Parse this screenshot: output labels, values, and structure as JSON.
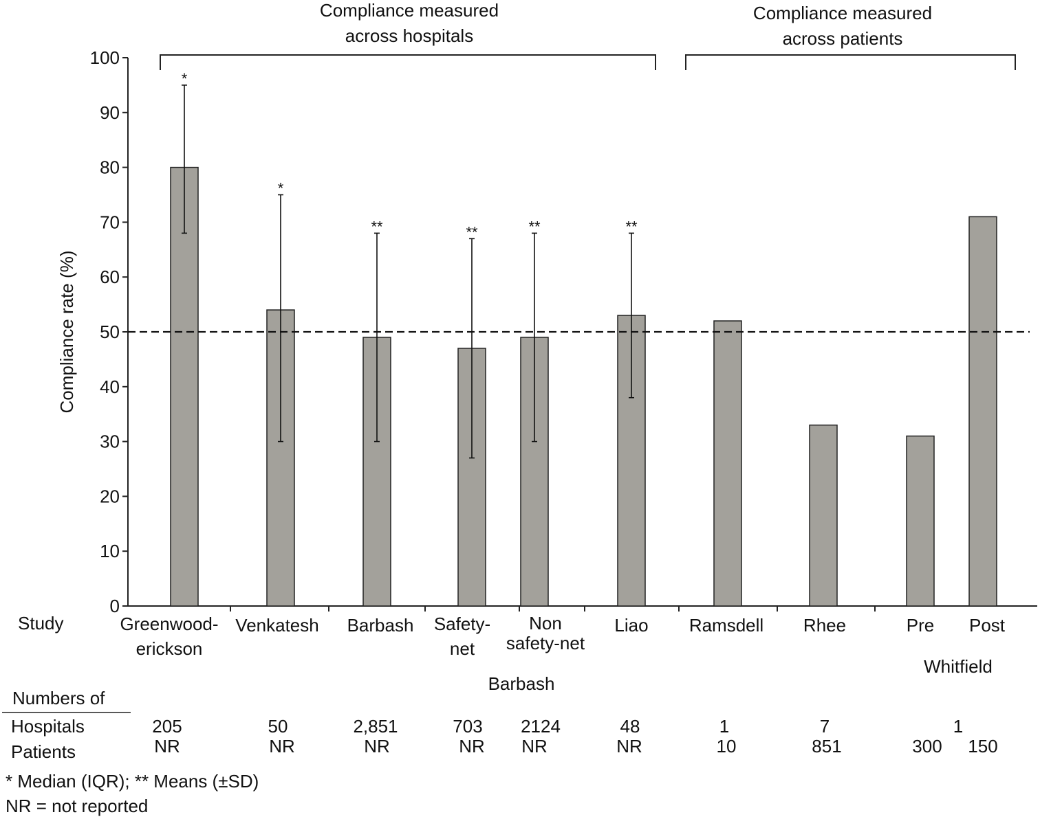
{
  "chart_data": {
    "type": "bar",
    "ylabel": "Compliance rate (%)",
    "ylim": [
      0,
      100
    ],
    "yticks": [
      0,
      10,
      20,
      30,
      40,
      50,
      60,
      70,
      80,
      90,
      100
    ],
    "reference_line": 50,
    "bar_color": "#a3a19b",
    "groups": [
      {
        "label": "Compliance measured across hospitals",
        "categories": [
          "Greenwood-erickson",
          "Venkatesh",
          "Barbash",
          "Safety-net",
          "Non safety-net",
          "Liao"
        ]
      },
      {
        "label": "Compliance measured across patients",
        "categories": [
          "Ramsdell",
          "Rhee",
          "Pre",
          "Post"
        ]
      }
    ],
    "bars": [
      {
        "name": "Greenwood-erickson",
        "label_lines": [
          "Greenwood-",
          "erickson"
        ],
        "value": 80,
        "err_low": 68,
        "err_high": 95,
        "marker": "*"
      },
      {
        "name": "Venkatesh",
        "label_lines": [
          "Venkatesh"
        ],
        "value": 54,
        "err_low": 30,
        "err_high": 75,
        "marker": "*"
      },
      {
        "name": "Barbash",
        "label_lines": [
          "Barbash"
        ],
        "value": 49,
        "err_low": 30,
        "err_high": 68,
        "marker": "**"
      },
      {
        "name": "Safety-net",
        "label_lines": [
          "Safety-",
          "net"
        ],
        "value": 47,
        "err_low": 27,
        "err_high": 67,
        "marker": "**"
      },
      {
        "name": "Non safety-net",
        "label_lines": [
          "Non",
          "safety-net"
        ],
        "value": 49,
        "err_low": 30,
        "err_high": 68,
        "marker": "**"
      },
      {
        "name": "Liao",
        "label_lines": [
          "Liao"
        ],
        "value": 53,
        "err_low": 38,
        "err_high": 68,
        "marker": "**"
      },
      {
        "name": "Ramsdell",
        "label_lines": [
          "Ramsdell"
        ],
        "value": 52,
        "err_low": null,
        "err_high": null,
        "marker": ""
      },
      {
        "name": "Rhee",
        "label_lines": [
          "Rhee"
        ],
        "value": 33,
        "err_low": null,
        "err_high": null,
        "marker": ""
      },
      {
        "name": "Pre",
        "label_lines": [
          "Pre"
        ],
        "value": 31,
        "err_low": null,
        "err_high": null,
        "marker": ""
      },
      {
        "name": "Post",
        "label_lines": [
          "Post"
        ],
        "value": 71,
        "err_low": null,
        "err_high": null,
        "marker": ""
      }
    ],
    "study_label": "Study",
    "sublabels": {
      "barbash": "Barbash",
      "whitfield": "Whitfield"
    },
    "table": {
      "header": "Numbers of",
      "hospitals_label": "Hospitals",
      "patients_label": "Patients",
      "hospitals": [
        "205",
        "50",
        "2,851",
        "703",
        "2124",
        "48",
        "1",
        "7",
        "1"
      ],
      "patients": [
        "NR",
        "NR",
        "NR",
        "NR",
        "NR",
        "NR",
        "10",
        "851",
        "300",
        "150"
      ]
    },
    "footnotes": [
      "* Median (IQR); ** Means (±SD)",
      "NR = not reported"
    ]
  }
}
